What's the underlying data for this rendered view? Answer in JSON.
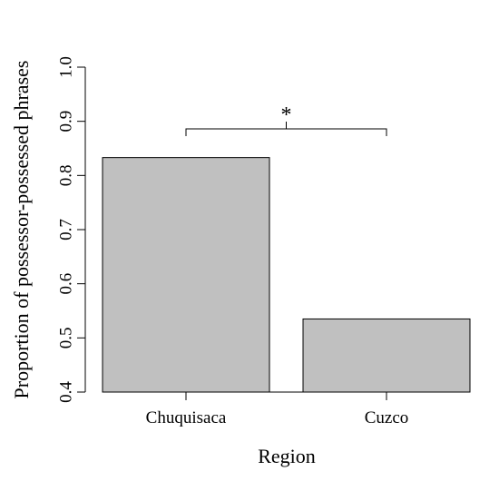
{
  "chart_data": {
    "type": "bar",
    "categories": [
      "Chuquisaca",
      "Cuzco"
    ],
    "values": [
      0.833,
      0.535
    ],
    "xlabel": "Region",
    "ylabel": "Proportion of possessor-possessed phrases",
    "ylim": [
      0.4,
      1.0
    ],
    "yticks": [
      "0.4",
      "0.5",
      "0.6",
      "0.7",
      "0.8",
      "0.9",
      "1.0"
    ],
    "grid": false,
    "bar_color": "#c0c0c0",
    "annotation": {
      "text": "*",
      "between": [
        "Chuquisaca",
        "Cuzco"
      ]
    }
  }
}
